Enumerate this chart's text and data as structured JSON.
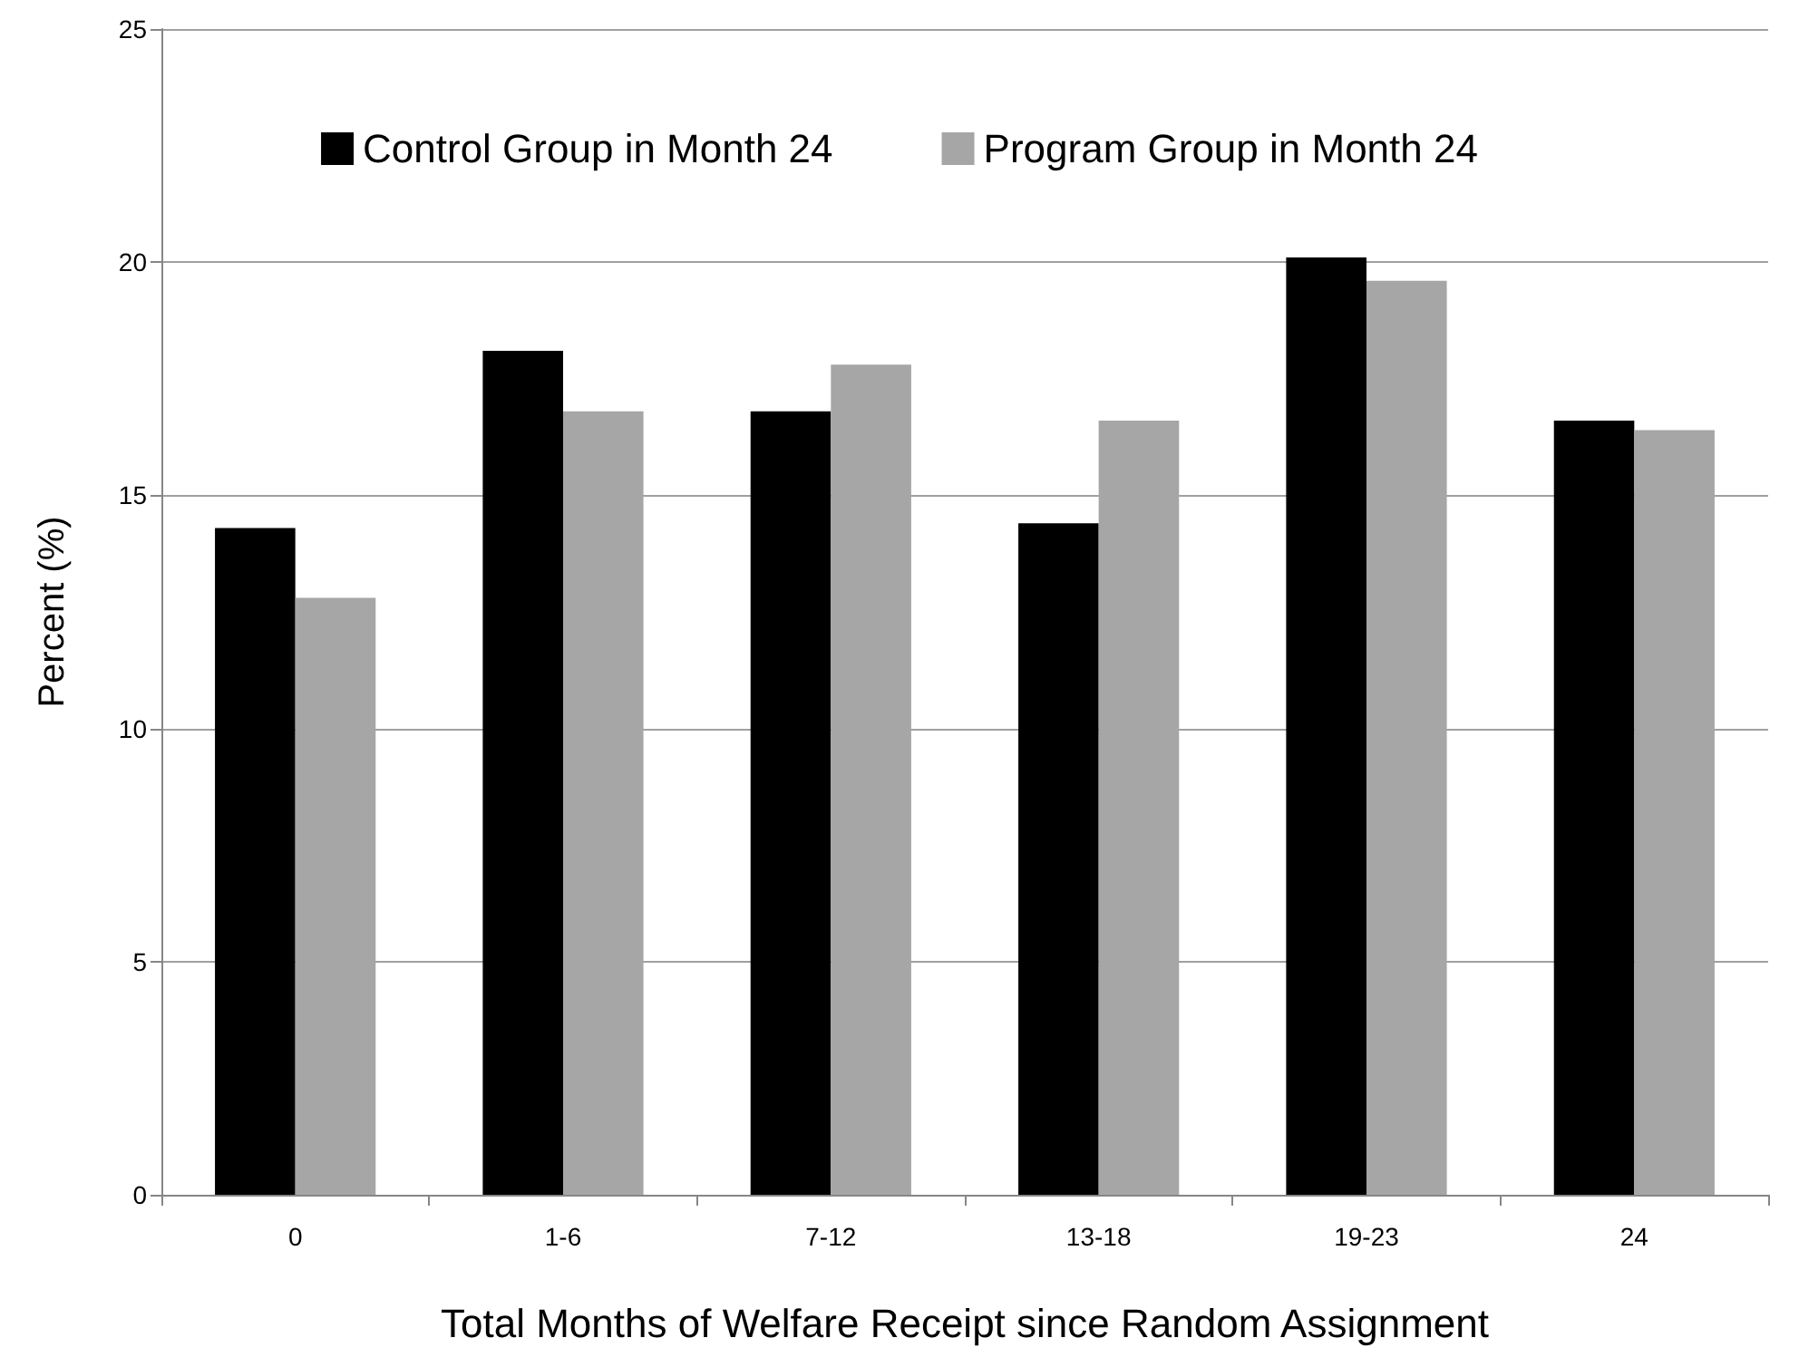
{
  "chart_data": {
    "type": "bar",
    "xlabel": "Total Months of Welfare Receipt since Random Assignment",
    "ylabel": "Percent (%)",
    "categories": [
      "0",
      "1-6",
      "7-12",
      "13-18",
      "19-23",
      "24"
    ],
    "series": [
      {
        "name": "Control Group in Month 24",
        "color": "#000000",
        "values": [
          14.3,
          18.1,
          16.8,
          14.4,
          20.1,
          16.6
        ]
      },
      {
        "name": "Program Group in Month 24",
        "color": "#a6a6a6",
        "values": [
          12.8,
          16.8,
          17.8,
          16.6,
          19.6,
          16.4
        ]
      }
    ],
    "ylim": [
      0,
      25
    ],
    "yticks": [
      0,
      5,
      10,
      15,
      20,
      25
    ],
    "grid": "y",
    "legend": "top"
  }
}
